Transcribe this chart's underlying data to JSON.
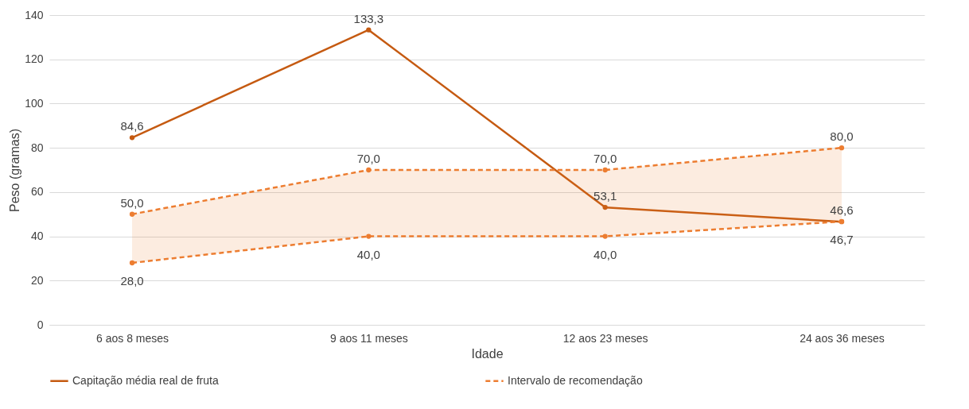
{
  "chart_data": {
    "type": "line",
    "xlabel": "Idade",
    "ylabel": "Peso (gramas)",
    "categories": [
      "6 aos 8 meses",
      "9 aos 11 meses",
      "12 aos 23 meses",
      "24 aos 36 meses"
    ],
    "series": [
      {
        "name": "Capitação média real de fruta",
        "color": "#c55a11",
        "line_style": "solid",
        "values": [
          84.6,
          133.3,
          53.1,
          46.6
        ],
        "value_labels": [
          "84,6",
          "133,3",
          "53,1",
          "46,6"
        ]
      },
      {
        "name": "Intervalo de recomendação",
        "color": "#ed7d31",
        "line_style": "dashed",
        "values": [
          50.0,
          70.0,
          70.0,
          80.0
        ],
        "value_labels": [
          "50,0",
          "70,0",
          "70,0",
          "80,0"
        ],
        "lower": [
          28.0,
          40.0,
          40.0,
          46.7
        ],
        "upper": [
          50.0,
          70.0,
          70.0,
          80.0
        ]
      },
      {
        "color": "#ed7d31",
        "line_style": "dashed",
        "values": [
          28.0,
          40.0,
          40.0,
          46.7
        ],
        "value_labels": [
          "28,0",
          "40,0",
          "40,0",
          "46,7"
        ]
      }
    ],
    "ylim": [
      0,
      140
    ],
    "yticks": [
      0,
      20,
      40,
      60,
      80,
      100,
      120,
      140
    ],
    "grid": "y",
    "legend": "bottom",
    "marker": "circle"
  }
}
